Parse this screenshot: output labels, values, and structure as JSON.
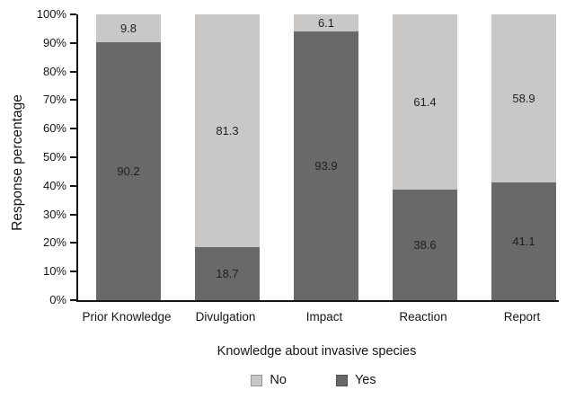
{
  "chart_data": {
    "type": "bar",
    "stacked": true,
    "xlabel": "Knowledge about invasive species",
    "ylabel": "Response percentage",
    "categories": [
      "Prior Knowledge",
      "Divulgation",
      "Impact",
      "Reaction",
      "Report"
    ],
    "series": [
      {
        "name": "Yes",
        "color": "#696969",
        "values": [
          90.2,
          18.7,
          93.9,
          38.6,
          41.1
        ]
      },
      {
        "name": "No",
        "color": "#c9c8c6",
        "values": [
          9.8,
          81.3,
          6.1,
          61.4,
          58.9
        ]
      }
    ],
    "ylim": [
      0,
      100
    ],
    "yticks": [
      "0%",
      "10%",
      "20%",
      "30%",
      "40%",
      "50%",
      "60%",
      "70%",
      "80%",
      "90%",
      "100%"
    ],
    "grid": false,
    "legend": {
      "position": "bottom",
      "entries": [
        {
          "label": "No",
          "color": "#c9c8c6"
        },
        {
          "label": "Yes",
          "color": "#696969"
        }
      ]
    }
  }
}
